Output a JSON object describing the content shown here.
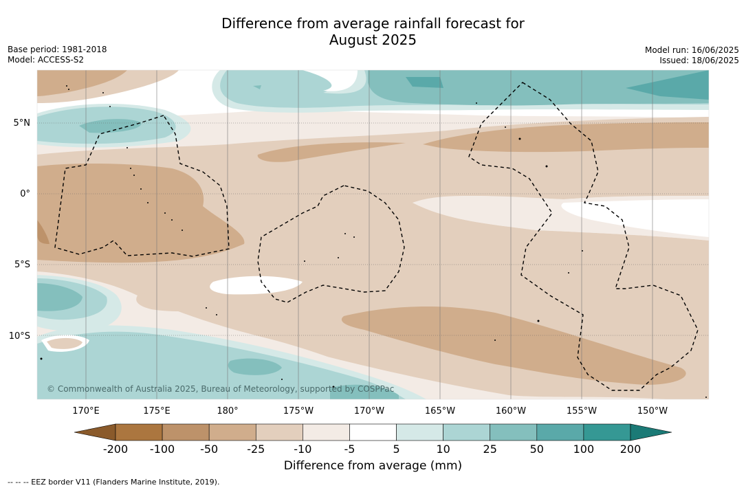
{
  "title_line1": "Difference from average rainfall forecast for",
  "title_line2": "August 2025",
  "meta_left": [
    "Base period: 1981-2018",
    "Model: ACCESS-S2"
  ],
  "meta_right": [
    "Model run: 16/06/2025",
    "Issued: 18/06/2025"
  ],
  "lat_labels": [
    "5°N",
    "0°",
    "5°S",
    "10°S"
  ],
  "lon_labels": [
    "170°E",
    "175°E",
    "180°",
    "175°W",
    "170°W",
    "165°W",
    "160°W",
    "155°W",
    "150°W"
  ],
  "copyright": "© Commonwealth of Australia 2025, Bureau of Meteorology, supported by COSPPac",
  "colorbar": {
    "ticks": [
      "-200",
      "-100",
      "-50",
      "-25",
      "-10",
      "-5",
      "5",
      "10",
      "25",
      "50",
      "100",
      "200"
    ],
    "colors": [
      "#8a5a2b",
      "#ab763f",
      "#bd926a",
      "#d0ad8c",
      "#e3cfbd",
      "#f3ebe5",
      "#ffffff",
      "#d5e9e7",
      "#acd5d4",
      "#84bfbd",
      "#5aa9a9",
      "#359894",
      "#1b7a76"
    ],
    "title": "Difference from average (mm)"
  },
  "footer": "-- -- -- EEZ border V11 (Flanders Marine Institute, 2019)."
}
